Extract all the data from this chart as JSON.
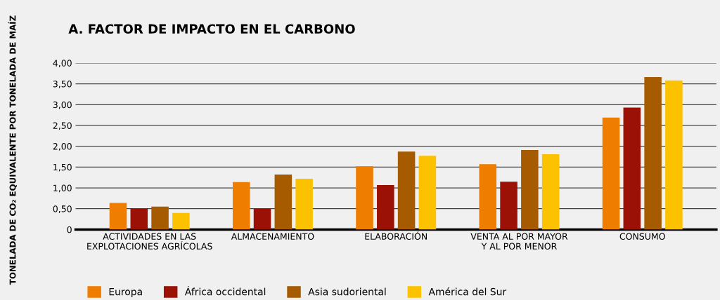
{
  "chart_data": {
    "type": "bar",
    "title": "A. FACTOR DE IMPACTO EN EL CARBONO",
    "ylabel": "TONELADA DE CO₂ EQUIVALENTE POR TONELADA DE MAÍZ",
    "categories": [
      "ACTIVIDADES EN LAS\nEXPLOTACIONES AGRÍCOLAS",
      "ALMACENAMIENTO",
      "ELABORACIÓN",
      "VENTA AL POR MAYOR\nY AL POR MENOR",
      "CONSUMO"
    ],
    "series": [
      {
        "name": "Europa",
        "color": "#ef7d00",
        "values": [
          0.64,
          1.14,
          1.52,
          1.57,
          2.69
        ]
      },
      {
        "name": "África occidental",
        "color": "#9b1106",
        "values": [
          0.5,
          0.5,
          1.07,
          1.15,
          2.93
        ]
      },
      {
        "name": "Asia sudoriental",
        "color": "#a65b00",
        "values": [
          0.55,
          1.32,
          1.87,
          1.91,
          3.66
        ]
      },
      {
        "name": "América del Sur",
        "color": "#fcc200",
        "values": [
          0.4,
          1.22,
          1.77,
          1.81,
          3.58
        ]
      }
    ],
    "ylim": [
      0,
      4
    ],
    "yticks": [
      0,
      {
        "value": 0.5,
        "label": "0,50"
      },
      {
        "value": 1,
        "label": "1,00"
      },
      {
        "value": 1.5,
        "label": "1,50"
      },
      {
        "value": 2,
        "label": "2,00"
      },
      {
        "value": 2.5,
        "label": "2,50"
      },
      {
        "value": 3,
        "label": "3,00"
      },
      {
        "value": 3.5,
        "label": "3,50"
      },
      {
        "value": 4,
        "label": "4,00"
      }
    ],
    "grid": "y",
    "legend": "bottom left"
  }
}
